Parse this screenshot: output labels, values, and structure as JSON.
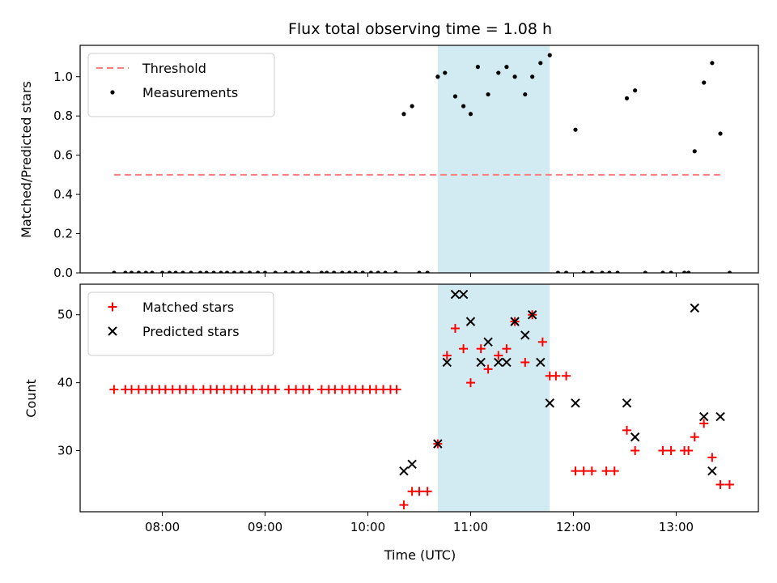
{
  "chart_data": {
    "title": "Flux total observing time = 1.08 h",
    "xlabel": "Time (UTC)",
    "x_ticks": [
      "08:00",
      "09:00",
      "10:00",
      "11:00",
      "12:00",
      "13:00"
    ],
    "x_tick_hours": [
      8,
      9,
      10,
      11,
      12,
      13
    ],
    "xlim_hours": [
      7.2,
      13.8
    ],
    "shaded_span_hours": [
      10.68,
      11.77
    ],
    "colors": {
      "threshold": "#ff7f7f",
      "measurements": "#000000",
      "matched": "#ff0000",
      "predicted": "#000000",
      "span": "#add8e6"
    },
    "panels": [
      {
        "type": "scatter",
        "ylabel": "Matched/Predicted stars",
        "ylim": [
          0,
          1.16
        ],
        "y_ticks": [
          "0.0",
          "0.2",
          "0.4",
          "0.6",
          "0.8",
          "1.0"
        ],
        "y_tick_values": [
          0,
          0.2,
          0.4,
          0.6,
          0.8,
          1.0
        ],
        "legend_location": "upper-left",
        "threshold": {
          "name": "Threshold",
          "value": 0.5,
          "x_range": [
            7.53,
            13.47
          ]
        },
        "series": [
          {
            "name": "Measurements",
            "points": [
              [
                7.53,
                0
              ],
              [
                7.64,
                0
              ],
              [
                7.7,
                0
              ],
              [
                7.77,
                0
              ],
              [
                7.84,
                0
              ],
              [
                7.9,
                0
              ],
              [
                8.0,
                0
              ],
              [
                8.07,
                0
              ],
              [
                8.13,
                0
              ],
              [
                8.2,
                0
              ],
              [
                8.28,
                0
              ],
              [
                8.37,
                0
              ],
              [
                8.43,
                0
              ],
              [
                8.5,
                0
              ],
              [
                8.57,
                0
              ],
              [
                8.63,
                0
              ],
              [
                8.7,
                0
              ],
              [
                8.77,
                0
              ],
              [
                8.85,
                0
              ],
              [
                8.93,
                0
              ],
              [
                9.0,
                0
              ],
              [
                9.1,
                0
              ],
              [
                9.2,
                0
              ],
              [
                9.27,
                0
              ],
              [
                9.35,
                0
              ],
              [
                9.42,
                0
              ],
              [
                9.55,
                0
              ],
              [
                9.6,
                0
              ],
              [
                9.67,
                0
              ],
              [
                9.75,
                0
              ],
              [
                9.82,
                0
              ],
              [
                9.88,
                0
              ],
              [
                9.95,
                0
              ],
              [
                10.03,
                0
              ],
              [
                10.1,
                0
              ],
              [
                10.17,
                0
              ],
              [
                10.27,
                0
              ],
              [
                10.35,
                0.81
              ],
              [
                10.43,
                0.85
              ],
              [
                10.5,
                0
              ],
              [
                10.58,
                0
              ],
              [
                10.68,
                1.0
              ],
              [
                10.75,
                1.02
              ],
              [
                10.85,
                0.9
              ],
              [
                10.93,
                0.85
              ],
              [
                11.0,
                0.81
              ],
              [
                11.07,
                1.05
              ],
              [
                11.17,
                0.91
              ],
              [
                11.27,
                1.02
              ],
              [
                11.35,
                1.05
              ],
              [
                11.43,
                1.0
              ],
              [
                11.53,
                0.91
              ],
              [
                11.6,
                1.0
              ],
              [
                11.68,
                1.07
              ],
              [
                11.77,
                1.11
              ],
              [
                11.85,
                0
              ],
              [
                11.93,
                0
              ],
              [
                12.02,
                0.73
              ],
              [
                12.1,
                0
              ],
              [
                12.18,
                0
              ],
              [
                12.28,
                0
              ],
              [
                12.35,
                0
              ],
              [
                12.43,
                0
              ],
              [
                12.52,
                0.89
              ],
              [
                12.6,
                0.93
              ],
              [
                12.7,
                0
              ],
              [
                12.87,
                0
              ],
              [
                12.95,
                0
              ],
              [
                13.08,
                0
              ],
              [
                13.12,
                0
              ],
              [
                13.18,
                0.62
              ],
              [
                13.27,
                0.97
              ],
              [
                13.35,
                1.07
              ],
              [
                13.43,
                0.71
              ],
              [
                13.52,
                0
              ]
            ]
          }
        ]
      },
      {
        "type": "scatter",
        "ylabel": "Count",
        "ylim": [
          21,
          54.5
        ],
        "y_ticks": [
          "30",
          "40",
          "50"
        ],
        "y_tick_values": [
          30,
          40,
          50
        ],
        "legend_location": "upper-left",
        "series": [
          {
            "name": "Matched stars",
            "marker": "plus",
            "points": [
              [
                7.53,
                39
              ],
              [
                7.64,
                39
              ],
              [
                7.7,
                39
              ],
              [
                7.77,
                39
              ],
              [
                7.84,
                39
              ],
              [
                7.9,
                39
              ],
              [
                7.97,
                39
              ],
              [
                8.03,
                39
              ],
              [
                8.1,
                39
              ],
              [
                8.17,
                39
              ],
              [
                8.23,
                39
              ],
              [
                8.3,
                39
              ],
              [
                8.4,
                39
              ],
              [
                8.47,
                39
              ],
              [
                8.53,
                39
              ],
              [
                8.6,
                39
              ],
              [
                8.67,
                39
              ],
              [
                8.73,
                39
              ],
              [
                8.8,
                39
              ],
              [
                8.87,
                39
              ],
              [
                8.97,
                39
              ],
              [
                9.03,
                39
              ],
              [
                9.1,
                39
              ],
              [
                9.23,
                39
              ],
              [
                9.3,
                39
              ],
              [
                9.37,
                39
              ],
              [
                9.43,
                39
              ],
              [
                9.55,
                39
              ],
              [
                9.62,
                39
              ],
              [
                9.68,
                39
              ],
              [
                9.75,
                39
              ],
              [
                9.82,
                39
              ],
              [
                9.88,
                39
              ],
              [
                9.95,
                39
              ],
              [
                10.02,
                39
              ],
              [
                10.08,
                39
              ],
              [
                10.15,
                39
              ],
              [
                10.22,
                39
              ],
              [
                10.28,
                39
              ],
              [
                10.35,
                22
              ],
              [
                10.43,
                24
              ],
              [
                10.5,
                24
              ],
              [
                10.58,
                24
              ],
              [
                10.68,
                31
              ],
              [
                10.77,
                44
              ],
              [
                10.85,
                48
              ],
              [
                10.93,
                45
              ],
              [
                11.0,
                40
              ],
              [
                11.1,
                45
              ],
              [
                11.17,
                42
              ],
              [
                11.27,
                44
              ],
              [
                11.35,
                45
              ],
              [
                11.43,
                49
              ],
              [
                11.53,
                43
              ],
              [
                11.6,
                50
              ],
              [
                11.7,
                46
              ],
              [
                11.77,
                41
              ],
              [
                11.83,
                41
              ],
              [
                11.93,
                41
              ],
              [
                12.02,
                27
              ],
              [
                12.1,
                27
              ],
              [
                12.18,
                27
              ],
              [
                12.32,
                27
              ],
              [
                12.4,
                27
              ],
              [
                12.52,
                33
              ],
              [
                12.6,
                30
              ],
              [
                12.87,
                30
              ],
              [
                12.95,
                30
              ],
              [
                13.08,
                30
              ],
              [
                13.12,
                30
              ],
              [
                13.18,
                32
              ],
              [
                13.27,
                34
              ],
              [
                13.35,
                29
              ],
              [
                13.43,
                25
              ],
              [
                13.52,
                25
              ]
            ]
          },
          {
            "name": "Predicted stars",
            "marker": "x",
            "points": [
              [
                10.35,
                27
              ],
              [
                10.43,
                28
              ],
              [
                10.68,
                31
              ],
              [
                10.77,
                43
              ],
              [
                10.85,
                53
              ],
              [
                10.93,
                53
              ],
              [
                11.0,
                49
              ],
              [
                11.1,
                43
              ],
              [
                11.17,
                46
              ],
              [
                11.27,
                43
              ],
              [
                11.35,
                43
              ],
              [
                11.43,
                49
              ],
              [
                11.53,
                47
              ],
              [
                11.6,
                50
              ],
              [
                11.68,
                43
              ],
              [
                11.77,
                37
              ],
              [
                12.02,
                37
              ],
              [
                12.52,
                37
              ],
              [
                12.6,
                32
              ],
              [
                13.18,
                51
              ],
              [
                13.27,
                35
              ],
              [
                13.35,
                27
              ],
              [
                13.43,
                35
              ]
            ]
          }
        ]
      }
    ]
  }
}
